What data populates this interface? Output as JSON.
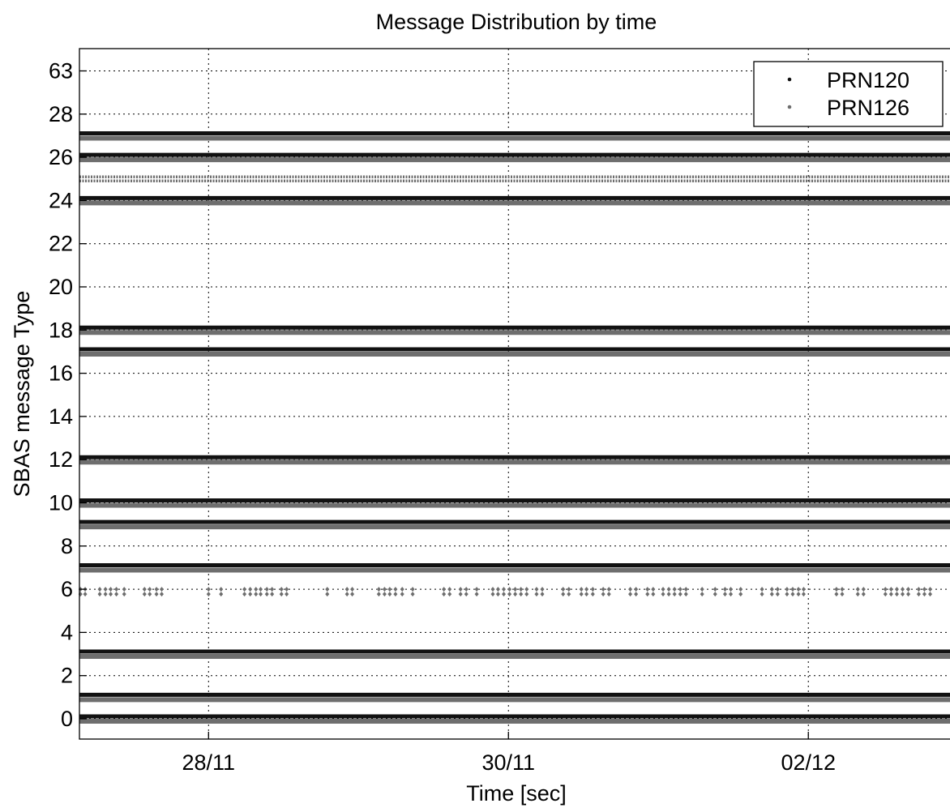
{
  "chart_data": {
    "type": "scatter",
    "title": "Message Distribution by time",
    "xlabel": "Time [sec]",
    "ylabel": "SBAS message Type",
    "x_ticks": [
      {
        "label": "28/11",
        "date": "2019-11-28"
      },
      {
        "label": "30/11",
        "date": "2019-11-30"
      },
      {
        "label": "02/12",
        "date": "2019-12-02"
      }
    ],
    "xlim": [
      "2019-11-27 03:20",
      "2019-12-03 00:45"
    ],
    "y_ticks": [
      "0",
      "2",
      "4",
      "6",
      "8",
      "10",
      "12",
      "14",
      "16",
      "18",
      "20",
      "22",
      "24",
      "26",
      "28",
      "63"
    ],
    "grid": true,
    "legend_position": "top-right",
    "colors": {
      "PRN120": "#111111",
      "PRN126": "#6e6e6e"
    },
    "series": [
      {
        "name": "PRN120",
        "continuous_message_types": [
          "0",
          "1",
          "3",
          "7",
          "9",
          "10",
          "12",
          "17",
          "18",
          "24",
          "26",
          "27"
        ]
      },
      {
        "name": "PRN126",
        "continuous_message_types": [
          "0",
          "1",
          "3",
          "7",
          "9",
          "10",
          "12",
          "17",
          "18",
          "24",
          "25",
          "26",
          "27"
        ],
        "sporadic_points": {
          "message_type": "6",
          "dates": [
            "2019-11-27 03:30",
            "2019-11-27 04:15",
            "2019-11-27 06:35",
            "2019-11-27 07:30",
            "2019-11-27 08:20",
            "2019-11-27 09:15",
            "2019-11-27 10:30",
            "2019-11-27 13:45",
            "2019-11-27 14:35",
            "2019-11-27 15:40",
            "2019-11-27 16:30",
            "2019-11-28 00:00",
            "2019-11-28 02:00",
            "2019-11-28 05:45",
            "2019-11-28 06:40",
            "2019-11-28 07:35",
            "2019-11-28 08:20",
            "2019-11-28 09:20",
            "2019-11-28 10:10",
            "2019-11-28 11:40",
            "2019-11-28 12:30",
            "2019-11-28 19:00",
            "2019-11-28 22:10",
            "2019-11-28 23:00",
            "2019-11-29 03:15",
            "2019-11-29 04:10",
            "2019-11-29 05:00",
            "2019-11-29 05:55",
            "2019-11-29 07:00",
            "2019-11-29 08:40",
            "2019-11-29 13:40",
            "2019-11-29 14:35",
            "2019-11-29 16:20",
            "2019-11-29 17:15",
            "2019-11-29 18:55",
            "2019-11-29 21:30",
            "2019-11-29 22:20",
            "2019-11-29 23:15",
            "2019-11-30 00:10",
            "2019-11-30 01:05",
            "2019-11-30 02:00",
            "2019-11-30 02:55",
            "2019-11-30 04:30",
            "2019-11-30 05:25",
            "2019-11-30 08:45",
            "2019-11-30 09:40",
            "2019-11-30 11:40",
            "2019-11-30 12:30",
            "2019-11-30 13:30",
            "2019-11-30 15:10",
            "2019-11-30 16:05",
            "2019-11-30 19:30",
            "2019-11-30 20:25",
            "2019-11-30 22:15",
            "2019-11-30 23:10",
            "2019-12-01 00:45",
            "2019-12-01 01:40",
            "2019-12-01 02:35",
            "2019-12-01 03:30",
            "2019-12-01 04:25",
            "2019-12-01 07:00",
            "2019-12-01 09:05",
            "2019-12-01 10:40",
            "2019-12-01 11:35",
            "2019-12-01 13:10",
            "2019-12-01 16:35",
            "2019-12-01 18:10",
            "2019-12-01 19:05",
            "2019-12-01 20:35",
            "2019-12-01 21:30",
            "2019-12-01 22:25",
            "2019-12-01 23:15",
            "2019-12-02 04:30",
            "2019-12-02 05:25",
            "2019-12-02 07:55",
            "2019-12-02 08:50",
            "2019-12-02 12:20",
            "2019-12-02 13:15",
            "2019-12-02 14:10",
            "2019-12-02 15:05",
            "2019-12-02 16:00",
            "2019-12-02 17:40",
            "2019-12-02 18:35",
            "2019-12-02 19:30"
          ]
        }
      }
    ]
  }
}
